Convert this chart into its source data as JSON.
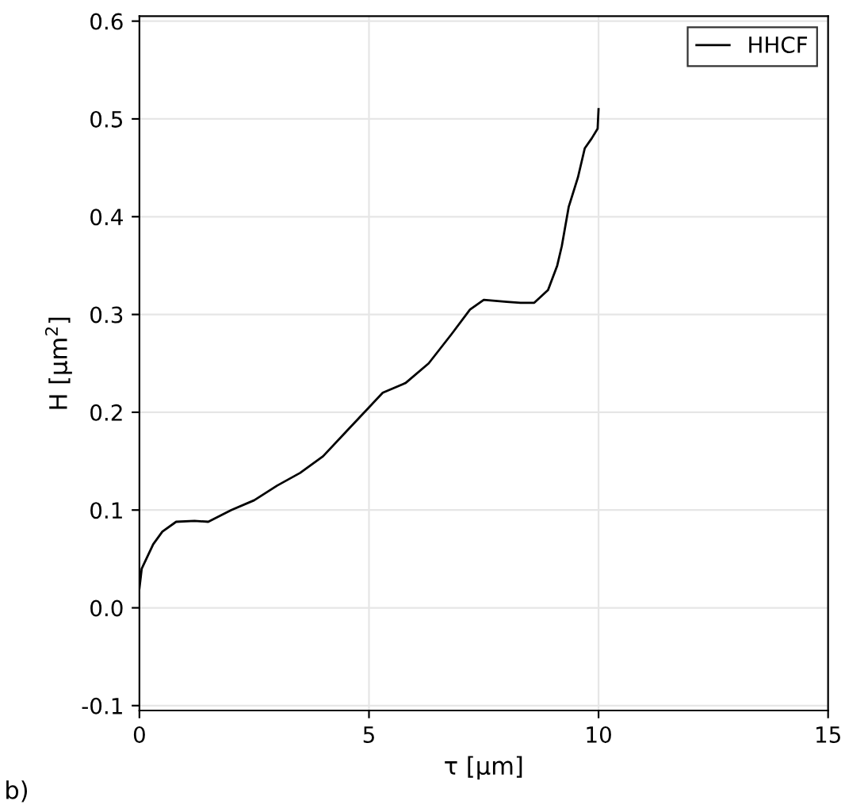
{
  "chart_data": {
    "type": "line",
    "xlabel": "τ [μm]",
    "ylabel": "H [μm$^{2}$]",
    "xlim": [
      0,
      15
    ],
    "ylim": [
      -0.105,
      0.605
    ],
    "xticks": [
      0,
      5,
      10,
      15
    ],
    "yticks": [
      {
        "value": -0.1,
        "label": "-0.1"
      },
      {
        "value": 0.0,
        "label": "0.0"
      },
      0.1,
      0.2,
      0.3,
      0.4,
      0.5,
      0.6
    ],
    "grid": true,
    "legend": "top right",
    "annotations": [
      "b)"
    ],
    "series": [
      {
        "name": "HHCF",
        "color": "#000000",
        "x": [
          0,
          0.05,
          0.3,
          0.5,
          0.8,
          1.2,
          1.5,
          2,
          2.5,
          3,
          3.5,
          4,
          4.5,
          5,
          5.3,
          5.8,
          6.3,
          6.8,
          7.2,
          7.5,
          8,
          8.3,
          8.6,
          8.9,
          9.1,
          9.2,
          9.35,
          9.55,
          9.7,
          9.85,
          9.98,
          10
        ],
        "values": [
          0.02,
          0.04,
          0.065,
          0.078,
          0.088,
          0.089,
          0.088,
          0.1,
          0.11,
          0.125,
          0.138,
          0.155,
          0.18,
          0.205,
          0.22,
          0.23,
          0.25,
          0.28,
          0.305,
          0.315,
          0.313,
          0.312,
          0.312,
          0.325,
          0.35,
          0.37,
          0.41,
          0.44,
          0.47,
          0.48,
          0.49,
          0.51
        ]
      }
    ]
  }
}
